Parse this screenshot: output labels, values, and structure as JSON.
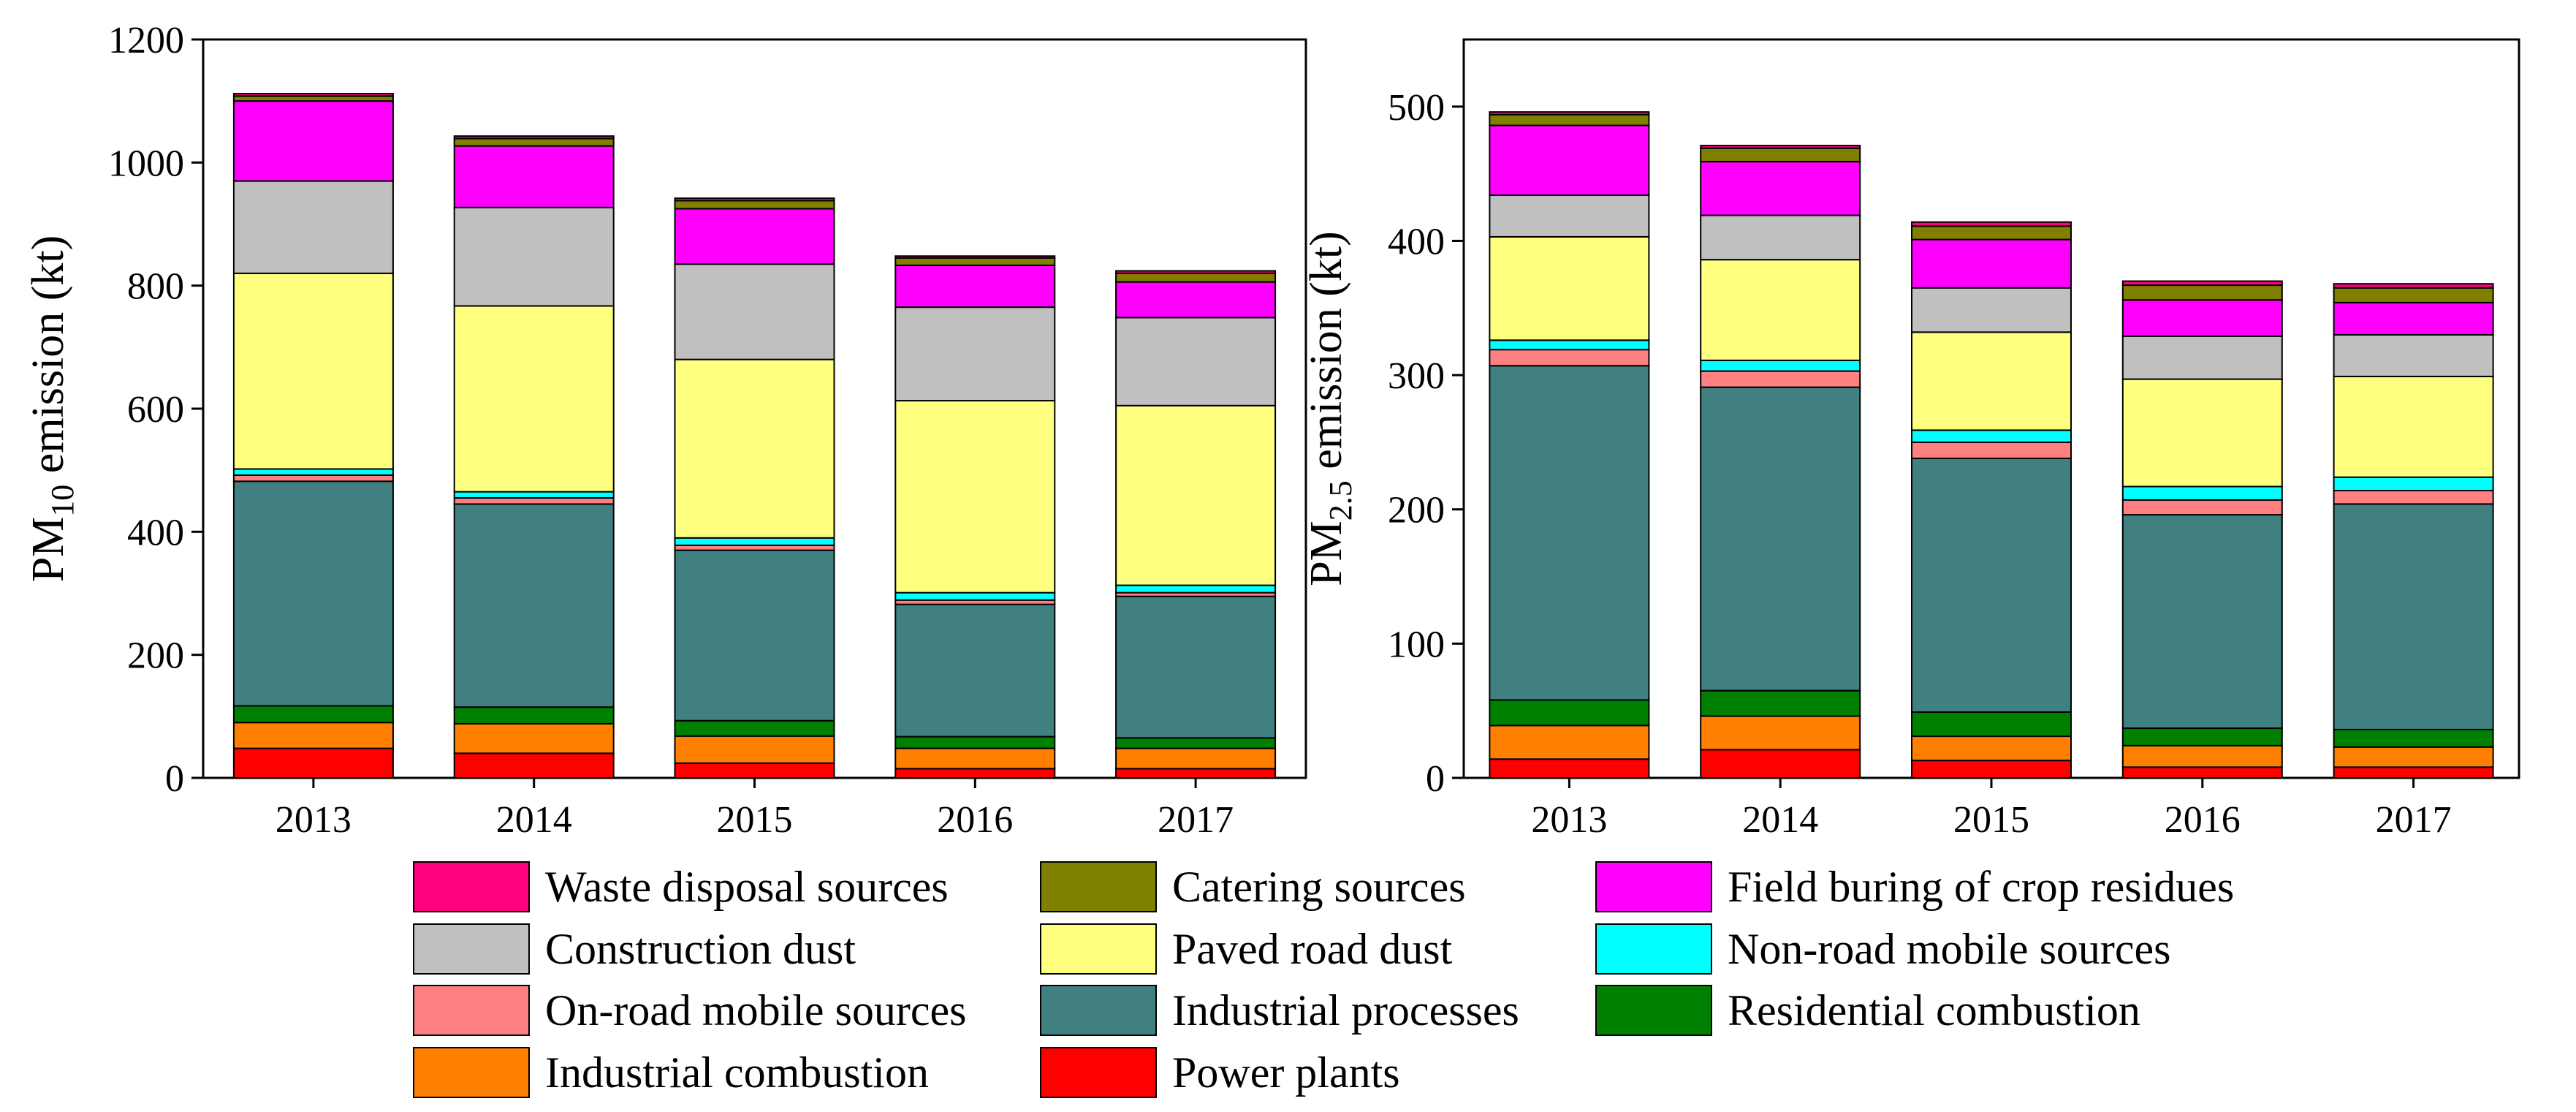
{
  "chart_data": [
    {
      "type": "bar",
      "stacked": true,
      "ylabel_main": "PM",
      "ylabel_sub": "10",
      "ylabel_rest": " emission (kt)",
      "ylim": [
        0,
        1200
      ],
      "yticks": [
        0,
        200,
        400,
        600,
        800,
        1000,
        1200
      ],
      "categories": [
        "2013",
        "2014",
        "2015",
        "2016",
        "2017"
      ],
      "series": [
        {
          "name": "Power plants",
          "values": [
            48,
            40,
            24,
            15,
            15
          ]
        },
        {
          "name": "Industrial combustion",
          "values": [
            42,
            48,
            44,
            33,
            33
          ]
        },
        {
          "name": "Residential combustion",
          "values": [
            27,
            27,
            25,
            19,
            17
          ]
        },
        {
          "name": "Industrial processes",
          "values": [
            365,
            330,
            277,
            215,
            230
          ]
        },
        {
          "name": "On-road mobile sources",
          "values": [
            10,
            10,
            8,
            7,
            6
          ]
        },
        {
          "name": "Non-road mobile sources",
          "values": [
            10,
            10,
            12,
            12,
            12
          ]
        },
        {
          "name": "Paved road dust",
          "values": [
            318,
            302,
            290,
            312,
            292
          ]
        },
        {
          "name": "Construction dust",
          "values": [
            150,
            160,
            155,
            152,
            143
          ]
        },
        {
          "name": "Field buring of crop residues",
          "values": [
            130,
            100,
            90,
            68,
            58
          ]
        },
        {
          "name": "Catering sources",
          "values": [
            8,
            12,
            13,
            12,
            14
          ]
        },
        {
          "name": "Waste disposal sources",
          "values": [
            4,
            4,
            4,
            3,
            4
          ]
        }
      ]
    },
    {
      "type": "bar",
      "stacked": true,
      "ylabel_main": "PM",
      "ylabel_sub": "2.5",
      "ylabel_rest": " emission (kt)",
      "ylim": [
        0,
        550
      ],
      "yticks": [
        0,
        100,
        200,
        300,
        400,
        500
      ],
      "categories": [
        "2013",
        "2014",
        "2015",
        "2016",
        "2017"
      ],
      "series": [
        {
          "name": "Power plants",
          "values": [
            14,
            21,
            13,
            8,
            8
          ]
        },
        {
          "name": "Industrial combustion",
          "values": [
            25,
            25,
            18,
            16,
            15
          ]
        },
        {
          "name": "Residential combustion",
          "values": [
            19,
            19,
            18,
            13,
            13
          ]
        },
        {
          "name": "Industrial processes",
          "values": [
            249,
            226,
            189,
            159,
            168
          ]
        },
        {
          "name": "On-road mobile sources",
          "values": [
            12,
            12,
            12,
            11,
            10
          ]
        },
        {
          "name": "Non-road mobile sources",
          "values": [
            7,
            8,
            9,
            10,
            10
          ]
        },
        {
          "name": "Paved road dust",
          "values": [
            77,
            75,
            73,
            80,
            75
          ]
        },
        {
          "name": "Construction dust",
          "values": [
            31,
            33,
            33,
            32,
            31
          ]
        },
        {
          "name": "Field buring of crop residues",
          "values": [
            52,
            40,
            36,
            27,
            24
          ]
        },
        {
          "name": "Catering sources",
          "values": [
            8,
            10,
            10,
            11,
            11
          ]
        },
        {
          "name": "Waste disposal sources",
          "values": [
            2,
            2,
            3,
            3,
            3
          ]
        }
      ]
    }
  ],
  "colors": {
    "Power plants": "#ff0000",
    "Industrial combustion": "#ff8000",
    "Residential combustion": "#008000",
    "Industrial processes": "#408080",
    "On-road mobile sources": "#ff8080",
    "Non-road mobile sources": "#00ffff",
    "Paved road dust": "#ffff80",
    "Construction dust": "#c0c0c0",
    "Field buring of crop residues": "#ff00ff",
    "Catering sources": "#808000",
    "Waste disposal sources": "#ff0080"
  },
  "legend": {
    "rows": [
      [
        "Waste disposal sources",
        "Catering sources",
        "Field buring of crop residues"
      ],
      [
        "Construction dust",
        "Paved road dust",
        "Non-road mobile sources"
      ],
      [
        "On-road mobile sources",
        "Industrial processes",
        "Residential combustion"
      ],
      [
        "Industrial combustion",
        "Power plants"
      ]
    ]
  }
}
